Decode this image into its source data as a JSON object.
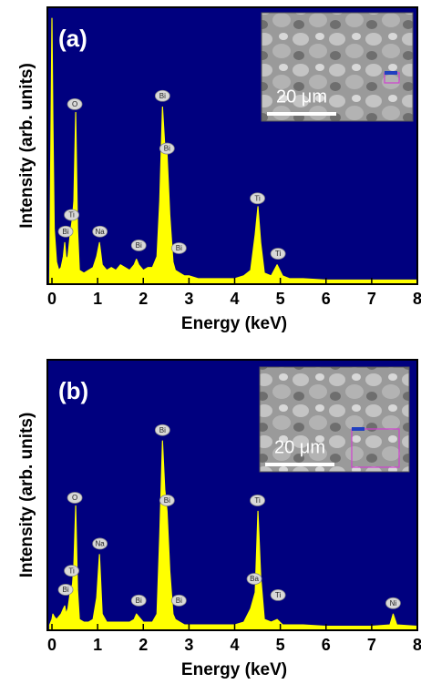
{
  "chart_data": [
    {
      "type": "line",
      "panel_label": "(a)",
      "xlabel": "Energy (keV)",
      "ylabel": "Intensity (arb. units)",
      "inset_scale": "20 μm",
      "background": "#00007f",
      "color": "#ffff00",
      "xlim": [
        -0.1,
        8
      ],
      "xticks": [
        0,
        1,
        2,
        3,
        4,
        5,
        6,
        7,
        8
      ],
      "ylim": [
        0,
        100
      ],
      "x": [
        -0.05,
        0,
        0.02,
        0.05,
        0.1,
        0.15,
        0.2,
        0.25,
        0.28,
        0.31,
        0.35,
        0.4,
        0.45,
        0.48,
        0.52,
        0.56,
        0.6,
        0.7,
        0.8,
        0.9,
        0.98,
        1.04,
        1.1,
        1.2,
        1.3,
        1.4,
        1.5,
        1.6,
        1.7,
        1.8,
        1.85,
        1.9,
        2.0,
        2.1,
        2.2,
        2.3,
        2.36,
        2.42,
        2.47,
        2.52,
        2.58,
        2.65,
        2.7,
        2.8,
        2.9,
        3.0,
        3.2,
        3.4,
        3.6,
        3.8,
        4.0,
        4.2,
        4.35,
        4.45,
        4.51,
        4.57,
        4.65,
        4.8,
        4.93,
        5.05,
        5.2,
        5.5,
        6.0,
        6.5,
        7.0,
        7.5,
        8.0
      ],
      "values": [
        2,
        96,
        60,
        20,
        8,
        5,
        6,
        10,
        15,
        9,
        10,
        18,
        24,
        30,
        62,
        20,
        5,
        4,
        5,
        6,
        10,
        15,
        7,
        5,
        6,
        5,
        7,
        6,
        5,
        7,
        9,
        7,
        5,
        6,
        6,
        10,
        30,
        64,
        50,
        47,
        25,
        8,
        5,
        4,
        3,
        3,
        2,
        2,
        2,
        2,
        2,
        3,
        5,
        18,
        28,
        15,
        4,
        3,
        7,
        3,
        2,
        2,
        1.5,
        1.5,
        1.5,
        1.5,
        1.5
      ],
      "annotations": [
        {
          "text": "Bi",
          "x": 0.3,
          "y": 19
        },
        {
          "text": "Ti",
          "x": 0.43,
          "y": 25
        },
        {
          "text": "O",
          "x": 0.5,
          "y": 65
        },
        {
          "text": "Na",
          "x": 1.05,
          "y": 19
        },
        {
          "text": "Bi",
          "x": 1.9,
          "y": 14
        },
        {
          "text": "Bi",
          "x": 2.42,
          "y": 68
        },
        {
          "text": "Bi",
          "x": 2.52,
          "y": 49
        },
        {
          "text": "Bi",
          "x": 2.78,
          "y": 13
        },
        {
          "text": "Ti",
          "x": 4.5,
          "y": 31
        },
        {
          "text": "Ti",
          "x": 4.95,
          "y": 11
        }
      ]
    },
    {
      "type": "line",
      "panel_label": "(b)",
      "xlabel": "Energy (keV)",
      "ylabel": "Intensity (arb. units)",
      "inset_scale": "20 μm",
      "background": "#00007f",
      "color": "#ffff00",
      "xlim": [
        -0.1,
        8
      ],
      "xticks": [
        0,
        1,
        2,
        3,
        4,
        5,
        6,
        7,
        8
      ],
      "ylim": [
        0,
        100
      ],
      "x": [
        -0.05,
        0,
        0.02,
        0.05,
        0.1,
        0.15,
        0.2,
        0.25,
        0.28,
        0.31,
        0.35,
        0.4,
        0.45,
        0.48,
        0.52,
        0.56,
        0.6,
        0.7,
        0.8,
        0.9,
        0.98,
        1.04,
        1.1,
        1.2,
        1.3,
        1.4,
        1.5,
        1.6,
        1.7,
        1.8,
        1.85,
        1.9,
        2.0,
        2.1,
        2.2,
        2.3,
        2.36,
        2.42,
        2.47,
        2.52,
        2.58,
        2.65,
        2.7,
        2.8,
        2.9,
        3.0,
        3.2,
        3.4,
        3.6,
        3.8,
        4.0,
        4.2,
        4.35,
        4.45,
        4.51,
        4.57,
        4.65,
        4.8,
        4.93,
        5.05,
        5.2,
        5.5,
        6.0,
        6.5,
        7.0,
        7.4,
        7.47,
        7.55,
        8.0
      ],
      "values": [
        2,
        4,
        6,
        5,
        4,
        5,
        6,
        8,
        9,
        6,
        8,
        14,
        17,
        24,
        46,
        15,
        4,
        3,
        3,
        4,
        12,
        28,
        6,
        3,
        3,
        3,
        3,
        3,
        3,
        4,
        6,
        5,
        3,
        3,
        3,
        6,
        35,
        70,
        52,
        44,
        22,
        6,
        4,
        3,
        2,
        2,
        2,
        2,
        2,
        2,
        2,
        3,
        8,
        14,
        44,
        20,
        4,
        3,
        4,
        2,
        2,
        2,
        1.5,
        1.5,
        1.5,
        2,
        6,
        2,
        1.5
      ],
      "annotations": [
        {
          "text": "Bi",
          "x": 0.3,
          "y": 15
        },
        {
          "text": "Ti",
          "x": 0.43,
          "y": 22
        },
        {
          "text": "O",
          "x": 0.5,
          "y": 49
        },
        {
          "text": "Na",
          "x": 1.05,
          "y": 32
        },
        {
          "text": "Bi",
          "x": 1.9,
          "y": 11
        },
        {
          "text": "Bi",
          "x": 2.42,
          "y": 74
        },
        {
          "text": "Bi",
          "x": 2.52,
          "y": 48
        },
        {
          "text": "Bi",
          "x": 2.78,
          "y": 11
        },
        {
          "text": "Ba",
          "x": 4.43,
          "y": 19
        },
        {
          "text": "Ti",
          "x": 4.5,
          "y": 48
        },
        {
          "text": "Ti",
          "x": 4.95,
          "y": 13
        },
        {
          "text": "Ni",
          "x": 7.47,
          "y": 10
        }
      ]
    }
  ]
}
